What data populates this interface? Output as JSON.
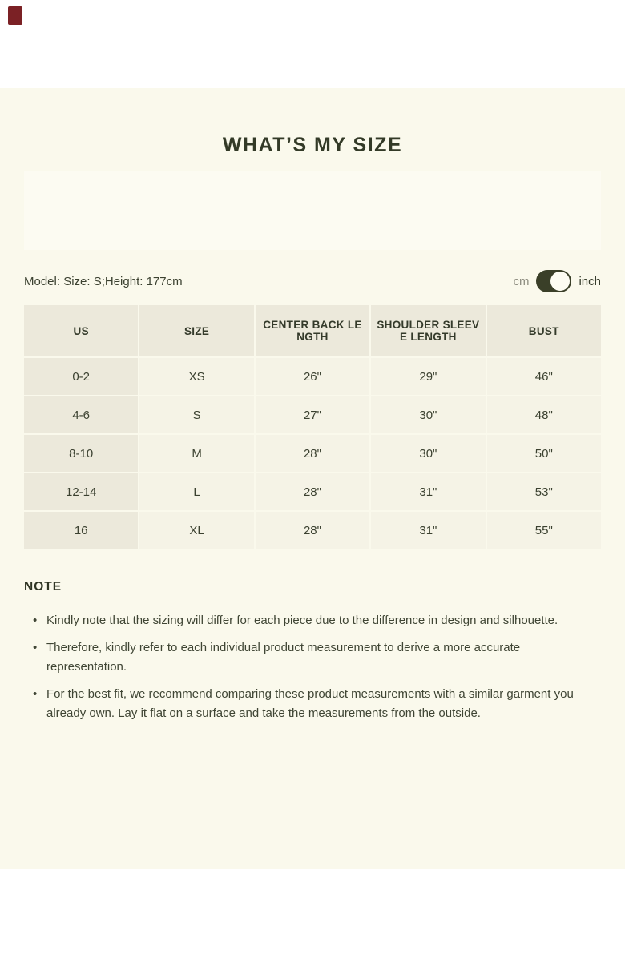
{
  "page": {
    "title": "WHAT’S MY SIZE"
  },
  "model_info": {
    "text": "Model: Size: S;Height: 177cm"
  },
  "unit_toggle": {
    "cm_label": "cm",
    "inch_label": "inch",
    "selected": "inch"
  },
  "size_table": {
    "columns": [
      {
        "label": "US",
        "lines": [
          "US"
        ]
      },
      {
        "label": "SIZE",
        "lines": [
          "SIZE"
        ]
      },
      {
        "label": "CENTER BACK LENGTH",
        "lines": [
          "CENTER BACK LE",
          "NGTH"
        ]
      },
      {
        "label": "SHOULDER SLEEVE LENGTH",
        "lines": [
          "SHOULDER SLEEV",
          "E LENGTH"
        ]
      },
      {
        "label": "BUST",
        "lines": [
          "BUST"
        ]
      }
    ],
    "rows": [
      [
        "0-2",
        "XS",
        "26\"",
        "29\"",
        "46\""
      ],
      [
        "4-6",
        "S",
        "27\"",
        "30\"",
        "48\""
      ],
      [
        "8-10",
        "M",
        "28\"",
        "30\"",
        "50\""
      ],
      [
        "12-14",
        "L",
        "28\"",
        "31\"",
        "53\""
      ],
      [
        "16",
        "XL",
        "28\"",
        "31\"",
        "55\""
      ]
    ]
  },
  "note": {
    "heading": "NOTE",
    "items": [
      "Kindly note that the sizing will differ for each piece due to the difference in design and silhouette.",
      "Therefore, kindly refer to each individual product measurement to derive a more accurate representation.",
      "For the best fit, we recommend comparing these product measurements with a similar garment you already own. Lay it flat on a surface and take the measurements from the outside."
    ]
  },
  "colors": {
    "page_background": "#ffffff",
    "panel_background": "#faf9ec",
    "table_cell_dark": "#ece9db",
    "table_cell_light": "#f5f3e6",
    "text": "#3a3f2e",
    "toggle_track": "#3a3f28",
    "toggle_knob": "#fdfcf2",
    "corner_marker": "#7b2125"
  }
}
